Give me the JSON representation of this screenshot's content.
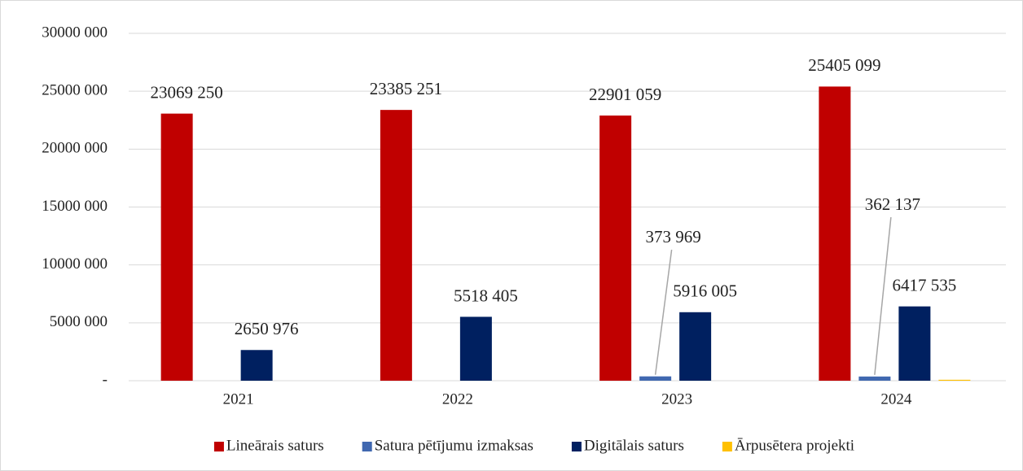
{
  "chart_data": {
    "type": "bar",
    "categories": [
      "2021",
      "2022",
      "2023",
      "2024"
    ],
    "series": [
      {
        "name": "Lineārais saturs",
        "color": "#c00000",
        "values": [
          23069250,
          23385251,
          22901059,
          25405099
        ],
        "value_labels": [
          "23069 250",
          "23385 251",
          "22901 059",
          "25405 099"
        ]
      },
      {
        "name": "Satura pētījumu izmaksas",
        "color": "#4068b0",
        "values": [
          null,
          null,
          373969,
          362137
        ],
        "value_labels": [
          null,
          null,
          "373 969",
          "362 137"
        ]
      },
      {
        "name": "Digitālais saturs",
        "color": "#002060",
        "values": [
          2650976,
          5518405,
          5916005,
          6417535
        ],
        "value_labels": [
          "2650 976",
          "5518 405",
          "5916 005",
          "6417 535"
        ]
      },
      {
        "name": "Ārpusētera projekti",
        "color": "#ffc000",
        "values": [
          null,
          null,
          null,
          80000
        ]
      }
    ],
    "ylim": [
      0,
      30000000
    ],
    "yticks": [
      {
        "value": 0,
        "label": "-"
      },
      {
        "value": 5000000,
        "label": "5000 000"
      },
      {
        "value": 10000000,
        "label": "10000 000"
      },
      {
        "value": 15000000,
        "label": "15000 000"
      },
      {
        "value": 20000000,
        "label": "20000 000"
      },
      {
        "value": 25000000,
        "label": "25000 000"
      },
      {
        "value": 30000000,
        "label": "30000 000"
      }
    ],
    "grid": true,
    "legend": "bottom"
  }
}
